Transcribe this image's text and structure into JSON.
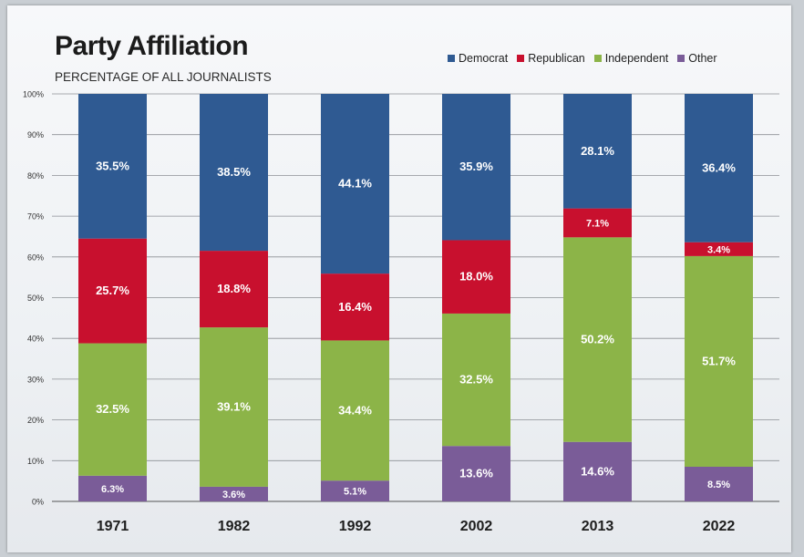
{
  "colors": {
    "Democrat": "#2f5a92",
    "Republican": "#c8102e",
    "Independent": "#8cb448",
    "Other": "#7a5c98"
  },
  "chart_data": {
    "type": "bar",
    "stacked": true,
    "title": "Party Affiliation",
    "subtitle": "PERCENTAGE OF ALL JOURNALISTS",
    "xlabel": "",
    "ylabel": "",
    "ylim": [
      0,
      100
    ],
    "y_ticks": [
      "0%",
      "10%",
      "20%",
      "30%",
      "40%",
      "50%",
      "60%",
      "70%",
      "80%",
      "90%",
      "100%"
    ],
    "grid": true,
    "legend_position": "top-right",
    "categories": [
      "1971",
      "1982",
      "1992",
      "2002",
      "2013",
      "2022"
    ],
    "series": [
      {
        "name": "Other",
        "values": [
          6.3,
          3.6,
          5.1,
          13.6,
          14.6,
          8.5
        ],
        "labels": [
          "6.3%",
          "3.6%",
          "5.1%",
          "13.6%",
          "14.6%",
          "8.5%"
        ]
      },
      {
        "name": "Independent",
        "values": [
          32.5,
          39.1,
          34.4,
          32.5,
          50.2,
          51.7
        ],
        "labels": [
          "32.5%",
          "39.1%",
          "34.4%",
          "32.5%",
          "50.2%",
          "51.7%"
        ]
      },
      {
        "name": "Republican",
        "values": [
          25.7,
          18.8,
          16.4,
          18.0,
          7.1,
          3.4
        ],
        "labels": [
          "25.7%",
          "18.8%",
          "16.4%",
          "18.0%",
          "7.1%",
          "3.4%"
        ]
      },
      {
        "name": "Democrat",
        "values": [
          35.5,
          38.5,
          44.1,
          35.9,
          28.1,
          36.4
        ],
        "labels": [
          "35.5%",
          "38.5%",
          "44.1%",
          "35.9%",
          "28.1%",
          "36.4%"
        ]
      }
    ],
    "legend": [
      "Democrat",
      "Republican",
      "Independent",
      "Other"
    ]
  }
}
